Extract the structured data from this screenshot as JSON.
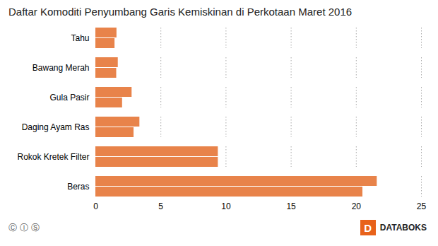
{
  "chart_data": {
    "type": "bar",
    "orientation": "horizontal",
    "title": "Daftar Komoditi Penyumbang Garis Kemiskinan di Perkotaan Maret 2016",
    "categories": [
      "Beras",
      "Rokok Kretek Filter",
      "Daging Ayam Ras",
      "Gula Pasir",
      "Bawang Merah",
      "Tahu"
    ],
    "series": [
      {
        "color": "#e8834a",
        "values": [
          21.6,
          9.4,
          3.38,
          2.78,
          1.72,
          1.62
        ]
      },
      {
        "color": "#e8834a",
        "values": [
          20.5,
          9.4,
          2.93,
          2.05,
          1.6,
          1.47
        ]
      }
    ],
    "xlim": [
      0,
      25
    ],
    "xticks": [
      0,
      5,
      10,
      15,
      20,
      25
    ],
    "grid": true,
    "annotations": [
      {
        "text": "Ⓒ Ⓘ Ⓢ"
      },
      {
        "text": "D",
        "color": "#e8621a"
      },
      {
        "text": "DATABOKS"
      }
    ]
  }
}
